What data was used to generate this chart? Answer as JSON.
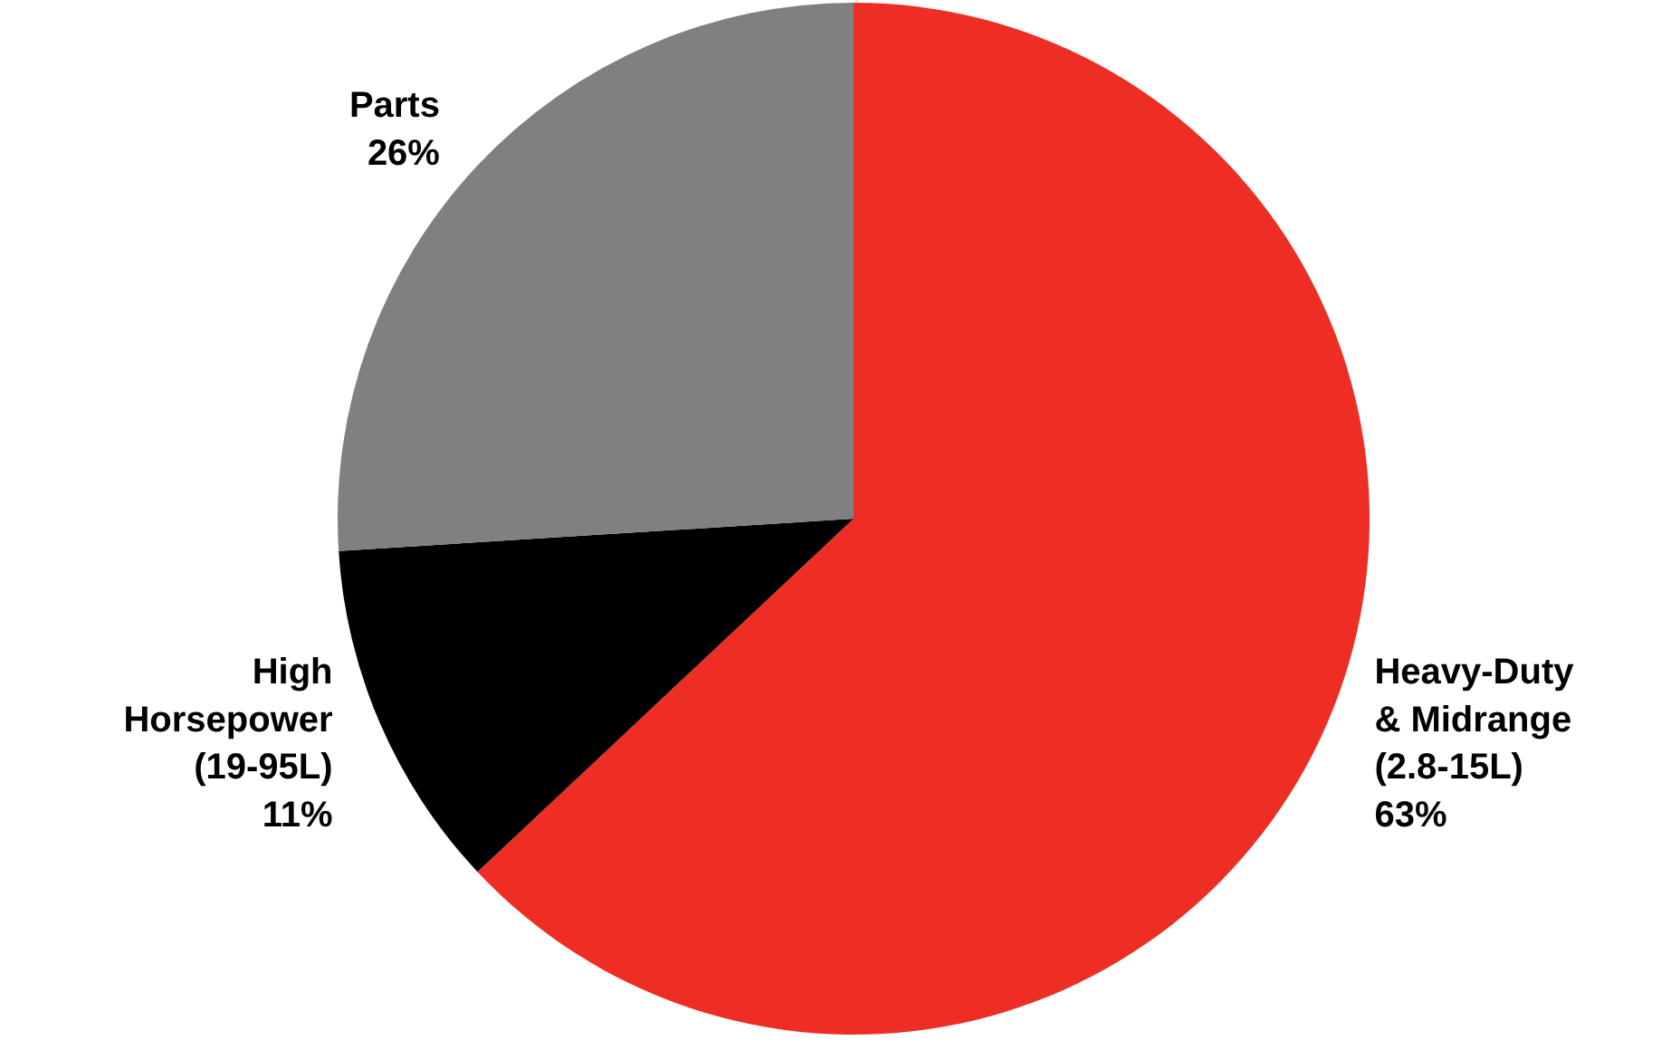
{
  "chart_data": {
    "type": "pie",
    "categories": [
      "Heavy-Duty\n& Midrange\n(2.8-15L)",
      "High\nHorsepower\n(19-95L)",
      "Parts"
    ],
    "values": [
      63,
      11,
      26
    ],
    "value_labels": [
      "63%",
      "11%",
      "26%"
    ],
    "colors": [
      "#ee2e24",
      "#000000",
      "#808080"
    ]
  }
}
